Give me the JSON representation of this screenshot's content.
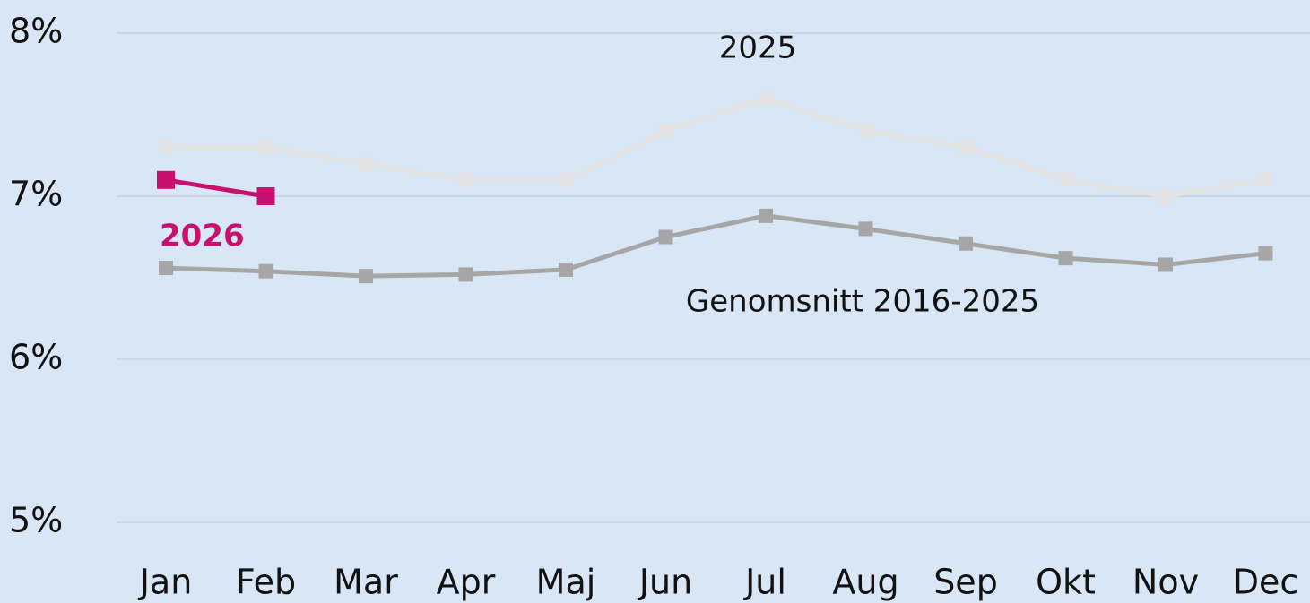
{
  "chart_data": {
    "type": "line",
    "categories": [
      "Jan",
      "Feb",
      "Mar",
      "Apr",
      "Maj",
      "Jun",
      "Jul",
      "Aug",
      "Sep",
      "Okt",
      "Nov",
      "Dec"
    ],
    "series": [
      {
        "name": "2025",
        "color": "#e3e3e3",
        "values": [
          7.3,
          7.3,
          7.2,
          7.1,
          7.1,
          7.4,
          7.6,
          7.4,
          7.3,
          7.1,
          7.0,
          7.1
        ]
      },
      {
        "name": "Genomsnitt 2016-2025",
        "color": "#a6a6a6",
        "values": [
          6.56,
          6.54,
          6.51,
          6.52,
          6.55,
          6.75,
          6.88,
          6.8,
          6.71,
          6.62,
          6.58,
          6.65
        ]
      },
      {
        "name": "2026",
        "color": "#c8106e",
        "values": [
          7.1,
          7.0,
          null,
          null,
          null,
          null,
          null,
          null,
          null,
          null,
          null,
          null
        ]
      }
    ],
    "ylim": [
      5,
      8
    ],
    "yticks": [
      {
        "value": 5,
        "label": "5%"
      },
      {
        "value": 6,
        "label": "6%"
      },
      {
        "value": 7,
        "label": "7%"
      },
      {
        "value": 8,
        "label": "8%"
      }
    ],
    "grid": true
  }
}
